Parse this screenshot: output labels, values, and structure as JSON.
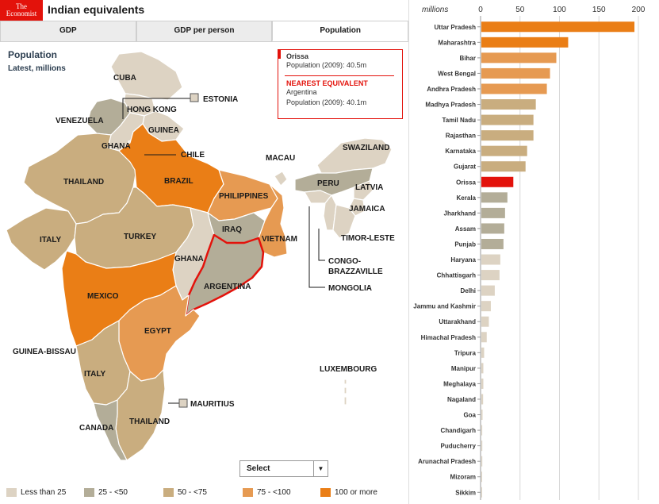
{
  "header": {
    "logo_line1": "The",
    "logo_line2": "Economist",
    "title": "Indian equivalents"
  },
  "tabs": [
    {
      "label": "GDP",
      "active": false
    },
    {
      "label": "GDP per person",
      "active": false
    },
    {
      "label": "Population",
      "active": true
    }
  ],
  "map": {
    "title": "Population",
    "subtitle": "Latest, millions",
    "region_labels": [
      "CUBA",
      "ESTONIA",
      "HONG KONG",
      "VENEZUELA",
      "GUINEA",
      "GHANA",
      "CHILE",
      "THAILAND",
      "BRAZIL",
      "MACAU",
      "SWAZILAND",
      "PERU",
      "LATVIA",
      "PHILIPPINES",
      "JAMAICA",
      "ITALY",
      "TURKEY",
      "IRAQ",
      "TIMOR-LESTE",
      "VIETNAM",
      "GHANA",
      "CONGO-BRAZZAVILLE",
      "ARGENTINA",
      "MONGOLIA",
      "MEXICO",
      "EGYPT",
      "GUINEA-BISSAU",
      "ITALY",
      "LUXEMBOURG",
      "MAURITIUS",
      "THAILAND",
      "CANADA"
    ]
  },
  "infobox": {
    "state": "Orissa",
    "state_population": "Population (2009): 40.5m",
    "heading": "NEAREST EQUIVALENT",
    "country": "Argentina",
    "country_population": "Population (2009): 40.1m"
  },
  "select": {
    "label": "Select",
    "arrow": "▼"
  },
  "legend": [
    {
      "label": "Less than 25",
      "color": "#ddd3c3"
    },
    {
      "label": "25 - <50",
      "color": "#b3ad98"
    },
    {
      "label": "50 - <75",
      "color": "#c9ad7f"
    },
    {
      "label": "75 - <100",
      "color": "#e69a52"
    },
    {
      "label": "100 or more",
      "color": "#ea7e16"
    }
  ],
  "colors": {
    "accent": "#e3120b",
    "bar_100_plus": "#ea7e16",
    "bar_75_100": "#e69a52",
    "bar_50_75": "#c9ad7f",
    "bar_25_50": "#b3ad98",
    "bar_under_25": "#ddd3c3",
    "highlight": "#e3120b"
  },
  "chart_data": {
    "type": "bar",
    "orientation": "horizontal",
    "xlabel": "millions",
    "xlim": [
      0,
      210
    ],
    "xticks": [
      0,
      50,
      100,
      150,
      200
    ],
    "grid": true,
    "categories": [
      "Uttar Pradesh",
      "Maharashtra",
      "Bihar",
      "West Bengal",
      "Andhra Pradesh",
      "Madhya Pradesh",
      "Tamil Nadu",
      "Rajasthan",
      "Karnataka",
      "Gujarat",
      "Orissa",
      "Kerala",
      "Jharkhand",
      "Assam",
      "Punjab",
      "Haryana",
      "Chhattisgarh",
      "Delhi",
      "Jammu and Kashmir",
      "Uttarakhand",
      "Himachal Pradesh",
      "Tripura",
      "Manipur",
      "Meghalaya",
      "Nagaland",
      "Goa",
      "Chandigarh",
      "Puducherry",
      "Arunachal Pradesh",
      "Mizoram",
      "Sikkim"
    ],
    "values": [
      194,
      110,
      95,
      87,
      83,
      69,
      66,
      66,
      58,
      56,
      40.5,
      33,
      30,
      29,
      28,
      24,
      23,
      17,
      12,
      9.5,
      6.8,
      3.5,
      2.5,
      2.5,
      2.2,
      1.5,
      1.1,
      1.2,
      1.2,
      1.0,
      0.6
    ],
    "highlight": "Orissa"
  }
}
